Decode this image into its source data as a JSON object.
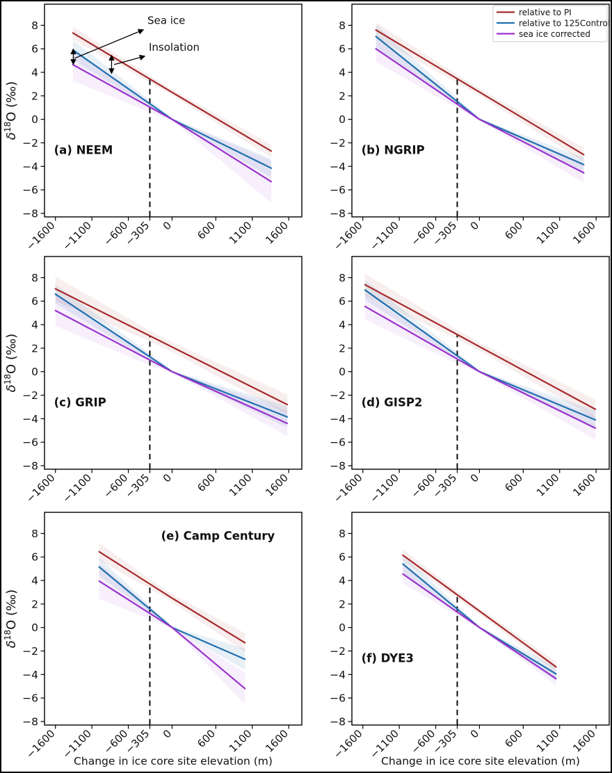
{
  "figure": {
    "xlabel": "Change in ice core site elevation (m)",
    "ylabel": {
      "plain": "δ18O (‰)",
      "delta": "δ",
      "superscript": "18",
      "rest": "O (‰)"
    },
    "xlim": [
      -1750,
      1780
    ],
    "ylim": [
      -8.3,
      9.8
    ],
    "xticks": {
      "values": [
        -1600,
        -1100,
        -600,
        -305,
        0,
        600,
        1100,
        1600
      ],
      "labels": [
        "−1600",
        "−1100",
        "−600",
        "−305",
        "0",
        "600",
        "1100",
        "1600"
      ]
    },
    "yticks": {
      "values": [
        8,
        6,
        4,
        2,
        0,
        -2,
        -4,
        -6,
        -8
      ],
      "labels": [
        "8",
        "6",
        "4",
        "2",
        "0",
        "−2",
        "−4",
        "−6",
        "−8"
      ]
    },
    "colors": {
      "red": "#a52a2a",
      "blue": "#2170ae",
      "purple": "#9932cc"
    },
    "band_colors": {
      "red": "rgba(165,42,42,0.08)",
      "blue": "rgba(33,112,174,0.10)",
      "purple": "rgba(153,50,204,0.08)"
    },
    "vline": {
      "x": -305,
      "style": "black dashed"
    }
  },
  "legend": {
    "location": "upper right of panel (b)",
    "items": [
      {
        "label": "relative to PI",
        "color": "#a52a2a"
      },
      {
        "label": "relative to 125Control",
        "color": "#2170ae"
      },
      {
        "label": "sea ice corrected",
        "color": "#9932cc"
      }
    ]
  },
  "chart_data": [
    {
      "type": "line",
      "panel": "a",
      "title": "(a) NEEM",
      "site": "NEEM",
      "vline_x": -305,
      "label_pos": {
        "x": -1620,
        "y": -2.95,
        "anchor": "start"
      },
      "series": [
        {
          "name": "relative to PI",
          "color_key": "red",
          "x": [
            -1360,
            -305,
            0,
            1360
          ],
          "y": [
            7.35,
            3.43,
            2.3,
            -2.7
          ],
          "band": [
            0.55,
            0.3,
            0.25,
            0.55
          ]
        },
        {
          "name": "relative to 125Control",
          "color_key": "blue",
          "x": [
            -1360,
            -305,
            0,
            1360
          ],
          "y": [
            5.9,
            1.32,
            0.0,
            -4.15
          ],
          "band": [
            0.85,
            0.3,
            0.08,
            0.8
          ]
        },
        {
          "name": "sea ice corrected",
          "color_key": "purple",
          "x": [
            -1360,
            -305,
            0,
            1360
          ],
          "y": [
            4.65,
            1.04,
            0.0,
            -5.3
          ],
          "band": [
            1.35,
            0.45,
            0.08,
            1.8
          ]
        }
      ],
      "annotations": [
        {
          "type": "text",
          "name": "sea-ice-annotation-label",
          "text": "Sea ice",
          "x": -338,
          "y": 8.1
        },
        {
          "type": "text",
          "name": "insolation-annotation-label",
          "text": "Insolation",
          "x": -319,
          "y": 5.85
        },
        {
          "type": "arrow",
          "name": "sea-ice-arrow",
          "x1": -1339,
          "y1": 5.19,
          "x2": -395,
          "y2": 7.62
        },
        {
          "type": "arrow",
          "name": "insolation-arrow",
          "x1": -795,
          "y1": 4.66,
          "x2": -376,
          "y2": 5.37
        },
        {
          "type": "doublearrow",
          "name": "sea-ice-extent-arrow",
          "x": -1355,
          "y1": 5.96,
          "y2": 4.69
        },
        {
          "type": "doublearrow",
          "name": "insolation-extent-arrow",
          "x": -830,
          "y1": 5.43,
          "y2": 3.92
        }
      ],
      "legend": false
    },
    {
      "type": "line",
      "panel": "b",
      "title": "(b) NGRIP",
      "site": "NGRIP",
      "vline_x": -305,
      "label_pos": {
        "x": -1620,
        "y": -2.95,
        "anchor": "start"
      },
      "series": [
        {
          "name": "relative to PI",
          "color_key": "red",
          "x": [
            -1420,
            -305,
            0,
            1430
          ],
          "y": [
            7.6,
            3.45,
            2.32,
            -3.0
          ],
          "band": [
            0.65,
            0.35,
            0.3,
            0.6
          ]
        },
        {
          "name": "relative to 125Control",
          "color_key": "blue",
          "x": [
            -1420,
            -305,
            0,
            1430
          ],
          "y": [
            7.05,
            1.51,
            0.0,
            -3.85
          ],
          "band": [
            1.0,
            0.3,
            0.08,
            0.6
          ]
        },
        {
          "name": "sea ice corrected",
          "color_key": "purple",
          "x": [
            -1420,
            -305,
            0,
            1430
          ],
          "y": [
            6.0,
            1.29,
            0.0,
            -4.55
          ],
          "band": [
            1.1,
            0.35,
            0.08,
            0.85
          ]
        }
      ],
      "annotations": [],
      "legend": true
    },
    {
      "type": "line",
      "panel": "c",
      "title": "(c) GRIP",
      "site": "GRIP",
      "vline_x": -305,
      "label_pos": {
        "x": -1620,
        "y": -2.95,
        "anchor": "start"
      },
      "series": [
        {
          "name": "relative to PI",
          "color_key": "red",
          "x": [
            -1600,
            -305,
            0,
            1580
          ],
          "y": [
            7.05,
            3.05,
            2.1,
            -2.8
          ],
          "band": [
            1.05,
            0.45,
            0.4,
            0.85
          ]
        },
        {
          "name": "relative to 125Control",
          "color_key": "blue",
          "x": [
            -1600,
            -305,
            0,
            1580
          ],
          "y": [
            6.6,
            1.26,
            0.0,
            -3.85
          ],
          "band": [
            0.8,
            0.3,
            0.08,
            0.9
          ]
        },
        {
          "name": "sea ice corrected",
          "color_key": "purple",
          "x": [
            -1600,
            -305,
            0,
            1580
          ],
          "y": [
            5.2,
            0.99,
            0.0,
            -4.4
          ],
          "band": [
            1.3,
            0.45,
            0.08,
            1.1
          ]
        }
      ],
      "annotations": [],
      "legend": false
    },
    {
      "type": "line",
      "panel": "d",
      "title": "(d) GISP2",
      "site": "GISP2",
      "vline_x": -305,
      "label_pos": {
        "x": -1620,
        "y": -2.95,
        "anchor": "start"
      },
      "series": [
        {
          "name": "relative to PI",
          "color_key": "red",
          "x": [
            -1570,
            -305,
            0,
            1590
          ],
          "y": [
            7.4,
            3.16,
            2.13,
            -3.2
          ],
          "band": [
            0.95,
            0.4,
            0.35,
            0.8
          ]
        },
        {
          "name": "relative to 125Control",
          "color_key": "blue",
          "x": [
            -1570,
            -305,
            0,
            1590
          ],
          "y": [
            6.95,
            1.35,
            0.0,
            -4.1
          ],
          "band": [
            0.85,
            0.3,
            0.08,
            0.8
          ]
        },
        {
          "name": "sea ice corrected",
          "color_key": "purple",
          "x": [
            -1570,
            -305,
            0,
            1590
          ],
          "y": [
            5.55,
            1.08,
            0.0,
            -4.8
          ],
          "band": [
            1.1,
            0.4,
            0.08,
            1.0
          ]
        }
      ],
      "annotations": [],
      "legend": false
    },
    {
      "type": "line",
      "panel": "e",
      "title": "(e) Camp Century",
      "site": "Camp Century",
      "vline_x": -305,
      "label_pos": {
        "x": 1410,
        "y": 7.45,
        "anchor": "end"
      },
      "series": [
        {
          "name": "relative to PI",
          "color_key": "red",
          "x": [
            -1000,
            -305,
            0,
            1000
          ],
          "y": [
            6.45,
            3.7,
            2.5,
            -1.3
          ],
          "band": [
            0.75,
            0.4,
            0.35,
            0.8
          ]
        },
        {
          "name": "relative to 125Control",
          "color_key": "blue",
          "x": [
            -1000,
            -305,
            0,
            1000
          ],
          "y": [
            5.15,
            1.57,
            0.0,
            -2.7
          ],
          "band": [
            0.8,
            0.3,
            0.08,
            0.9
          ]
        },
        {
          "name": "sea ice corrected",
          "color_key": "purple",
          "x": [
            -1000,
            -305,
            0,
            1000
          ],
          "y": [
            3.95,
            1.2,
            0.0,
            -5.2
          ],
          "band": [
            1.5,
            0.5,
            0.08,
            1.35
          ]
        }
      ],
      "annotations": [],
      "legend": false
    },
    {
      "type": "line",
      "panel": "f",
      "title": "(f) DYE3",
      "site": "DYE3",
      "vline_x": -305,
      "label_pos": {
        "x": -1620,
        "y": -2.95,
        "anchor": "start"
      },
      "series": [
        {
          "name": "relative to PI",
          "color_key": "red",
          "x": [
            -1050,
            -305,
            0,
            1050
          ],
          "y": [
            6.15,
            2.78,
            1.4,
            -3.35
          ],
          "band": [
            0.5,
            0.3,
            0.25,
            0.45
          ]
        },
        {
          "name": "relative to 125Control",
          "color_key": "blue",
          "x": [
            -1050,
            -305,
            0,
            1050
          ],
          "y": [
            5.4,
            1.57,
            0.0,
            -3.95
          ],
          "band": [
            0.75,
            0.3,
            0.08,
            0.6
          ]
        },
        {
          "name": "sea ice corrected",
          "color_key": "purple",
          "x": [
            -1050,
            -305,
            0,
            1050
          ],
          "y": [
            4.55,
            1.32,
            0.0,
            -4.35
          ],
          "band": [
            0.8,
            0.3,
            0.08,
            0.55
          ]
        }
      ],
      "annotations": [],
      "legend": false
    }
  ]
}
